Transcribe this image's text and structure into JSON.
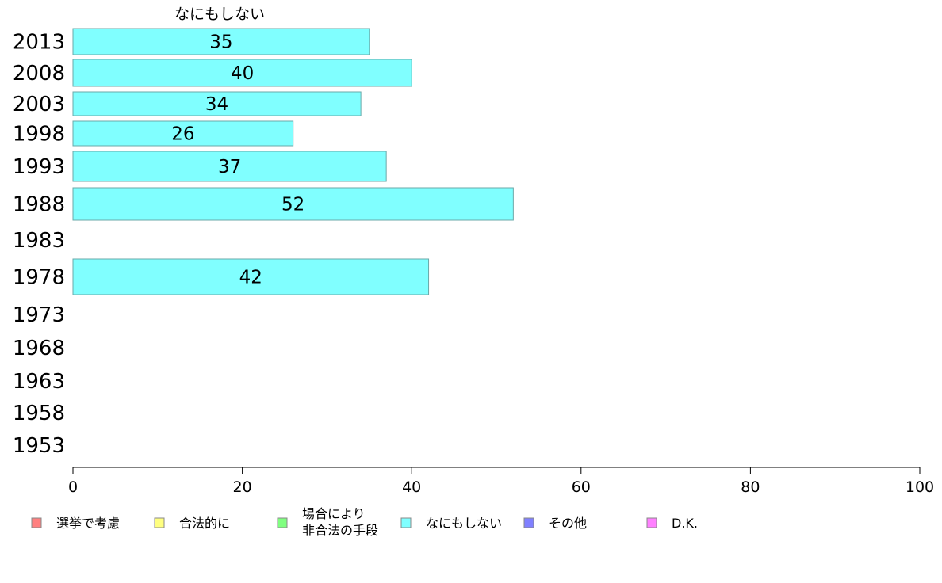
{
  "chart_data": {
    "type": "bar",
    "orientation": "horizontal",
    "panel_title": "なにもしない",
    "categories": [
      "2013",
      "2008",
      "2003",
      "1998",
      "1993",
      "1988",
      "1983",
      "1978",
      "1973",
      "1968",
      "1963",
      "1958",
      "1953"
    ],
    "series": [
      {
        "name": "なにもしない",
        "color": "#80ffff",
        "values": [
          35,
          40,
          34,
          26,
          37,
          52,
          null,
          42,
          null,
          null,
          null,
          null,
          null
        ]
      }
    ],
    "xlim": [
      0,
      100
    ],
    "xticks": [
      0,
      20,
      40,
      60,
      80,
      100
    ],
    "grid": false,
    "legend": {
      "placement": "bottom",
      "items": [
        {
          "label": "選挙で考慮",
          "color": "#ff8080"
        },
        {
          "label": "合法的に",
          "color": "#ffff80"
        },
        {
          "label": "場合により\n非合法の手段",
          "color": "#80ff80"
        },
        {
          "label": "なにもしない",
          "color": "#80ffff"
        },
        {
          "label": "その他",
          "color": "#8080ff"
        },
        {
          "label": "D.K.",
          "color": "#ff80ff"
        }
      ]
    }
  }
}
